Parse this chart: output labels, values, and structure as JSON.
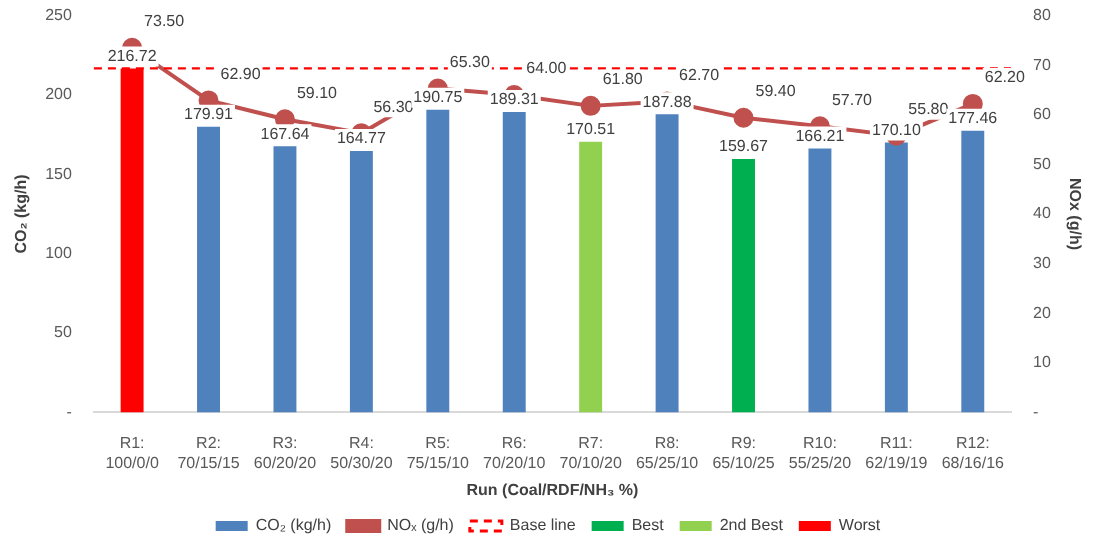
{
  "chart_data": {
    "type": "bar",
    "stacked": true,
    "xlabel": "Run (Coal/RDF/NH₃ %)",
    "ylabel": "CO₂ (kg/h)",
    "y2label": "NOx (g/h)",
    "categories": [
      "R1: 100/0/0",
      "R2: 70/15/15",
      "R3: 60/20/20",
      "R4: 50/30/20",
      "R5: 75/15/10",
      "R6: 70/20/10",
      "R7: 70/10/20",
      "R8: 65/25/10",
      "R9: 65/10/25",
      "R10: 55/25/20",
      "R11: 62/19/19",
      "R12: 68/16/16"
    ],
    "series": [
      {
        "name": "CO₂ (kg/h)",
        "color": "#4f81bd",
        "values": [
          null,
          179.91,
          167.64,
          164.77,
          190.75,
          189.31,
          null,
          187.88,
          null,
          166.21,
          170.1,
          177.46
        ],
        "value_labels": [
          null,
          "179.91",
          "167.64",
          "164.77",
          "190.75",
          "189.31",
          null,
          "187.88",
          null,
          "166.21",
          "170.10",
          "177.46"
        ]
      },
      {
        "name": "NOₓ (g/h)",
        "type": "line",
        "axis": "y2",
        "color": "#c0504d",
        "values": [
          73.5,
          62.9,
          59.1,
          56.3,
          65.3,
          64.0,
          61.8,
          62.7,
          59.4,
          57.7,
          55.8,
          62.2
        ],
        "value_labels": [
          "73.50",
          "62.90",
          "59.10",
          "56.30",
          "65.30",
          "64.00",
          "61.80",
          "62.70",
          "59.40",
          "57.70",
          "55.80",
          "62.20"
        ]
      },
      {
        "name": "Best",
        "color": "#00b050",
        "values": [
          null,
          null,
          null,
          null,
          null,
          null,
          null,
          null,
          159.67,
          null,
          null,
          null
        ],
        "value_labels": [
          null,
          null,
          null,
          null,
          null,
          null,
          null,
          null,
          "159.67",
          null,
          null,
          null
        ]
      },
      {
        "name": "2nd Best",
        "color": "#92d050",
        "values": [
          null,
          null,
          null,
          null,
          null,
          null,
          170.51,
          null,
          null,
          null,
          null,
          null
        ],
        "value_labels": [
          null,
          null,
          null,
          null,
          null,
          null,
          "170.51",
          null,
          null,
          null,
          null,
          null
        ]
      },
      {
        "name": "Worst",
        "color": "#ff0000",
        "values": [
          216.72,
          null,
          null,
          null,
          null,
          null,
          null,
          null,
          null,
          null,
          null,
          null
        ],
        "value_labels": [
          "216.72",
          null,
          null,
          null,
          null,
          null,
          null,
          null,
          null,
          null,
          null,
          null
        ]
      }
    ],
    "ylim": [
      0,
      250
    ],
    "yticks": [
      {
        "value": 0,
        "label": "-"
      },
      50,
      100,
      150,
      200,
      250
    ],
    "y2lim": [
      0,
      80
    ],
    "y2ticks": [
      {
        "value": 0,
        "label": "-"
      },
      10,
      20,
      30,
      40,
      50,
      60,
      70,
      80
    ],
    "ref_lines": [
      {
        "axis": "y",
        "value": 216.72,
        "label": "Base line",
        "color": "#ff0000",
        "line_style": "dashed"
      }
    ],
    "marker": "circle",
    "grid": false,
    "legend": "bottom"
  }
}
